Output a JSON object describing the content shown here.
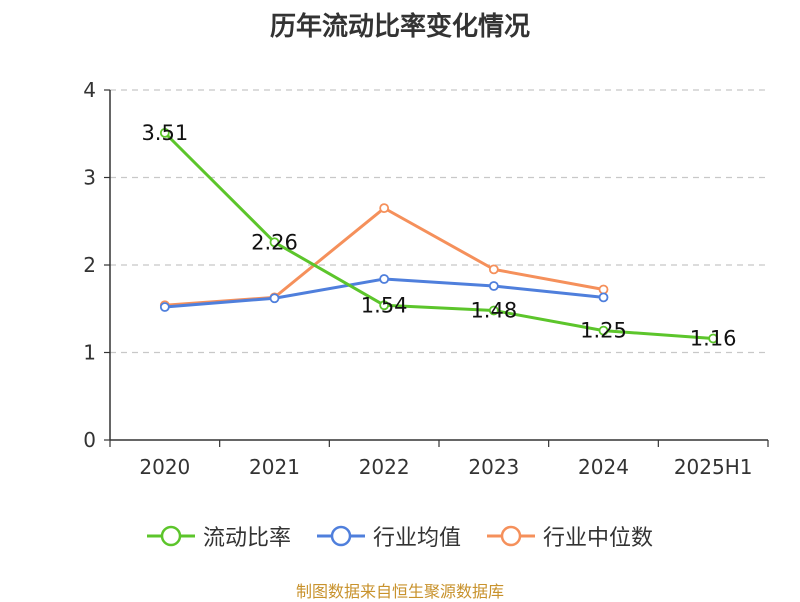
{
  "chart_data": {
    "type": "line",
    "title": "历年流动比率变化情况",
    "categories": [
      "2020",
      "2021",
      "2022",
      "2023",
      "2024",
      "2025H1"
    ],
    "ylim": [
      0,
      4
    ],
    "yticks": [
      "0",
      "1",
      "2",
      "3",
      "4"
    ],
    "grid": true,
    "legend_position": "bottom",
    "series": [
      {
        "name": "流动比率",
        "color": "#5cc52b",
        "values": [
          3.51,
          2.26,
          1.54,
          1.48,
          1.25,
          1.16
        ],
        "labels": [
          "3.51",
          "2.26",
          "1.54",
          "1.48",
          "1.25",
          "1.16"
        ]
      },
      {
        "name": "行业均值",
        "color": "#4f7fdc",
        "values": [
          1.52,
          1.62,
          1.84,
          1.76,
          1.63,
          null
        ]
      },
      {
        "name": "行业中位数",
        "color": "#f5905b",
        "values": [
          1.54,
          1.63,
          2.65,
          1.95,
          1.72,
          null
        ]
      }
    ],
    "source_note": "制图数据来自恒生聚源数据库"
  }
}
